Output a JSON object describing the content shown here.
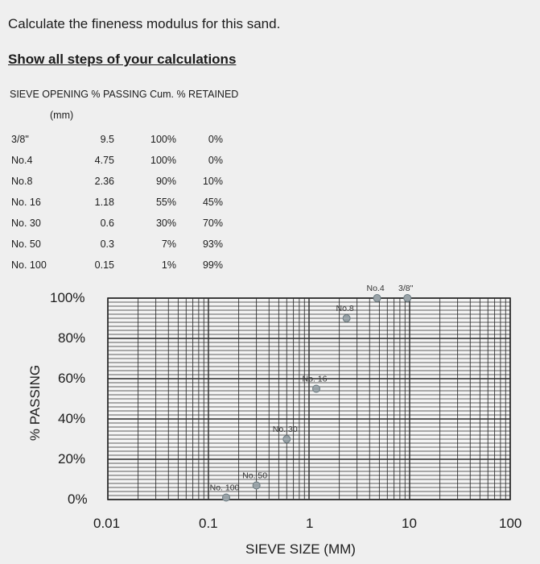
{
  "question": "Calculate the fineness modulus for this sand.",
  "instruction": "Show all steps of your calculations",
  "table": {
    "header_line1": "SIEVE  OPENING % PASSING Cum. % RETAINED",
    "header_line2": "(mm)",
    "rows": [
      {
        "sieve": "3/8\"",
        "opening": "9.5",
        "passing": "100%",
        "retained": "0%"
      },
      {
        "sieve": "No.4",
        "opening": "4.75",
        "passing": "100%",
        "retained": "0%"
      },
      {
        "sieve": "No.8",
        "opening": "2.36",
        "passing": "90%",
        "retained": "10%"
      },
      {
        "sieve": "No. 16",
        "opening": "1.18",
        "passing": "55%",
        "retained": "45%"
      },
      {
        "sieve": "No. 30",
        "opening": "0.6",
        "passing": "30%",
        "retained": "70%"
      },
      {
        "sieve": "No. 50",
        "opening": "0.3",
        "passing": "7%",
        "retained": "93%"
      },
      {
        "sieve": "No. 100",
        "opening": "0.15",
        "passing": "1%",
        "retained": "99%"
      }
    ]
  },
  "chart_data": {
    "type": "scatter",
    "xlabel": "SIEVE SIZE (MM)",
    "ylabel": "% PASSING",
    "x_scale": "log",
    "xlim": [
      0.01,
      100
    ],
    "ylim": [
      0,
      100
    ],
    "x_ticks": [
      "0.01",
      "0.1",
      "1",
      "10",
      "100"
    ],
    "y_ticks": [
      "100%",
      "80%",
      "60%",
      "40%",
      "20%",
      "0%"
    ],
    "grid": true,
    "points": [
      {
        "label": "No. 100",
        "x": 0.15,
        "y": 1
      },
      {
        "label": "No. 50",
        "x": 0.3,
        "y": 7
      },
      {
        "label": "No. 30",
        "x": 0.6,
        "y": 30
      },
      {
        "label": "No. 16",
        "x": 1.18,
        "y": 55
      },
      {
        "label": "No.8",
        "x": 2.36,
        "y": 90
      },
      {
        "label": "No.4",
        "x": 4.75,
        "y": 100
      },
      {
        "label": "3/8\"",
        "x": 9.5,
        "y": 100
      }
    ]
  }
}
